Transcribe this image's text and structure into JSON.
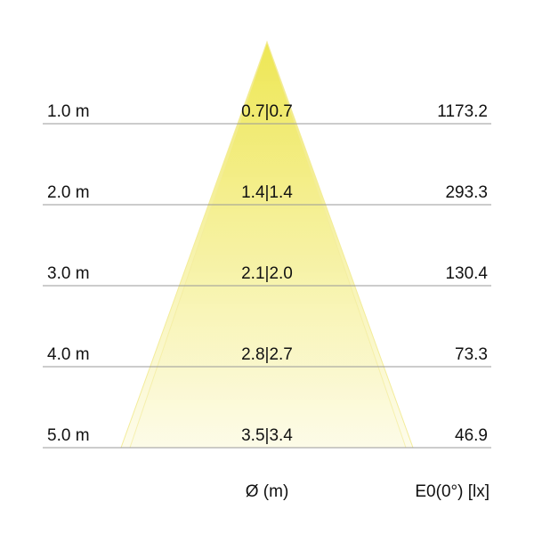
{
  "rows": [
    {
      "distance": "1.0 m",
      "diameter": "0.7|0.7",
      "illuminance": "1173.2"
    },
    {
      "distance": "2.0 m",
      "diameter": "1.4|1.4",
      "illuminance": "293.3"
    },
    {
      "distance": "3.0 m",
      "diameter": "2.1|2.0",
      "illuminance": "130.4"
    },
    {
      "distance": "4.0 m",
      "diameter": "2.8|2.7",
      "illuminance": "73.3"
    },
    {
      "distance": "5.0 m",
      "diameter": "3.5|3.4",
      "illuminance": "46.9"
    }
  ],
  "footer": {
    "diameter_label": "Ø (m)",
    "illuminance_label": "E0(0°) [lx]"
  },
  "colors": {
    "cone_top": "#ede54a",
    "cone_bottom": "#fdfbe6",
    "line": "#999999"
  }
}
